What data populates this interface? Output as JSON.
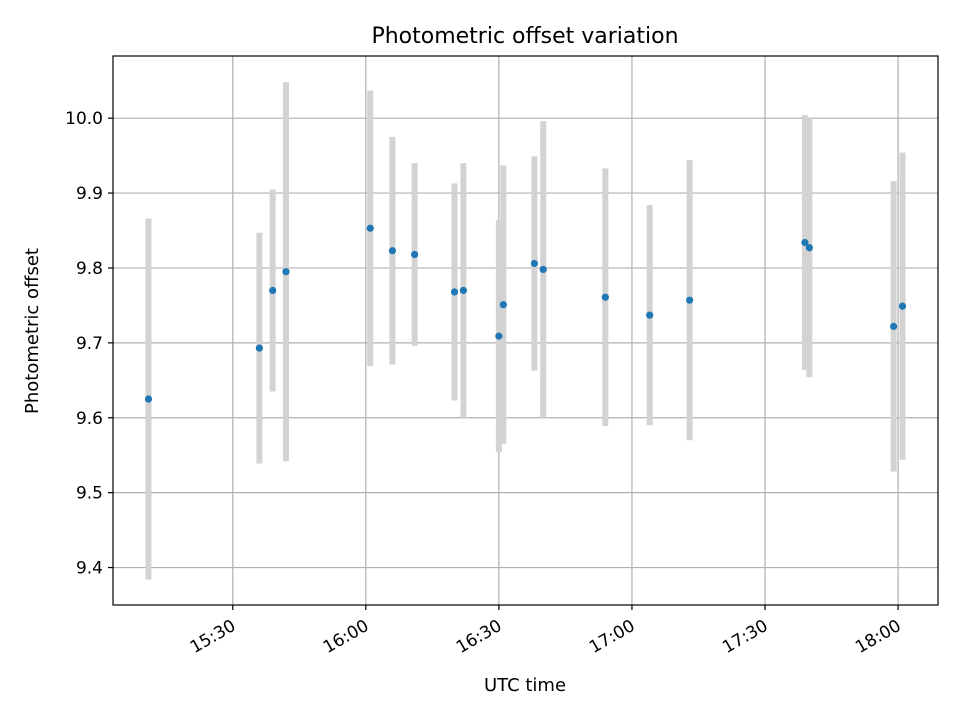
{
  "chart_data": {
    "type": "scatter",
    "title": "Photometric offset variation",
    "xlabel": "UTC time",
    "ylabel": "Photometric offset",
    "x_axis_type": "time",
    "x_ticks": [
      "15:30",
      "16:00",
      "16:30",
      "17:00",
      "17:30",
      "18:00"
    ],
    "y_ticks": [
      "9.4",
      "9.5",
      "9.6",
      "9.7",
      "9.8",
      "9.9",
      "10.0"
    ],
    "xlim": [
      "15:03",
      "18:09"
    ],
    "ylim": [
      9.35,
      10.083
    ],
    "grid": true,
    "marker_color": "#1f77b4",
    "errorbar_color": "#d3d3d3",
    "points": [
      {
        "x": "15:11",
        "y": 9.625,
        "yerr": 0.241
      },
      {
        "x": "15:36",
        "y": 9.693,
        "yerr": 0.154
      },
      {
        "x": "15:39",
        "y": 9.77,
        "yerr": 0.135
      },
      {
        "x": "15:42",
        "y": 9.795,
        "yerr": 0.253
      },
      {
        "x": "16:01",
        "y": 9.853,
        "yerr": 0.184
      },
      {
        "x": "16:06",
        "y": 9.823,
        "yerr": 0.152
      },
      {
        "x": "16:11",
        "y": 9.818,
        "yerr": 0.122
      },
      {
        "x": "16:20",
        "y": 9.768,
        "yerr": 0.145
      },
      {
        "x": "16:22",
        "y": 9.77,
        "yerr": 0.17
      },
      {
        "x": "16:30",
        "y": 9.709,
        "yerr": 0.155
      },
      {
        "x": "16:31",
        "y": 9.751,
        "yerr": 0.186
      },
      {
        "x": "16:38",
        "y": 9.806,
        "yerr": 0.143
      },
      {
        "x": "16:40",
        "y": 9.798,
        "yerr": 0.198
      },
      {
        "x": "16:54",
        "y": 9.761,
        "yerr": 0.172
      },
      {
        "x": "17:04",
        "y": 9.737,
        "yerr": 0.147
      },
      {
        "x": "17:13",
        "y": 9.757,
        "yerr": 0.187
      },
      {
        "x": "17:39",
        "y": 9.834,
        "yerr": 0.17
      },
      {
        "x": "17:40",
        "y": 9.827,
        "yerr": 0.173
      },
      {
        "x": "17:59",
        "y": 9.722,
        "yerr": 0.194
      },
      {
        "x": "18:01",
        "y": 9.749,
        "yerr": 0.205
      }
    ]
  }
}
